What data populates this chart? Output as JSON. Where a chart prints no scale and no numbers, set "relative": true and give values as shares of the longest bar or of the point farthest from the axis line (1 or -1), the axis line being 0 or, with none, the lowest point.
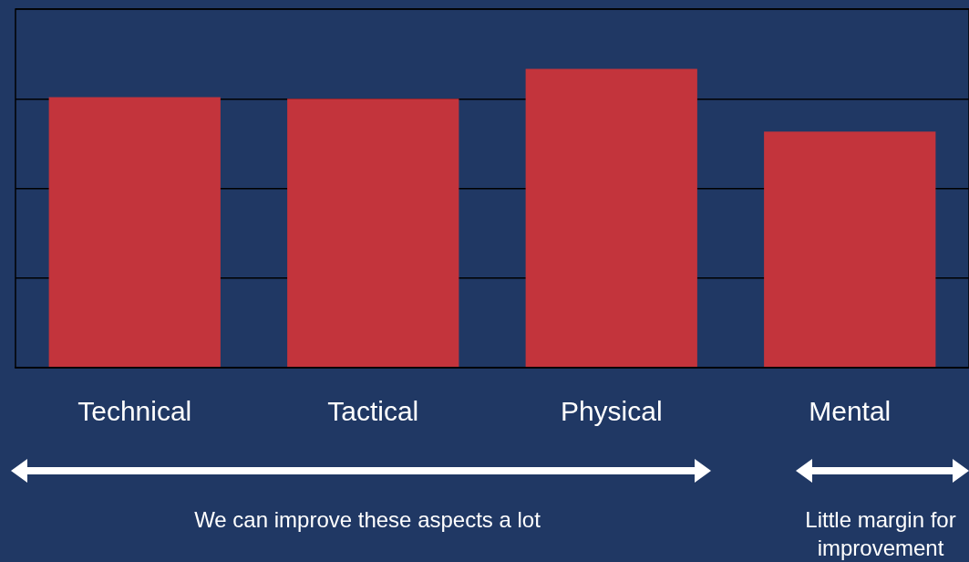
{
  "chart_data": {
    "type": "bar",
    "relative": true,
    "categories": [
      "Technical",
      "Tactical",
      "Physical",
      "Mental"
    ],
    "values": [
      0.905,
      0.9,
      1,
      0.79
    ],
    "color": "#c3343c",
    "grid": "y",
    "annotations": [
      "We can improve these aspects a lot",
      "Little margin for improvement"
    ]
  }
}
